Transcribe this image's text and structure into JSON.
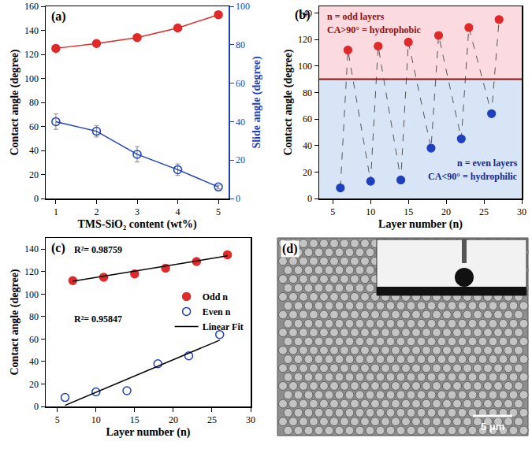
{
  "chart_data": [
    {
      "panel_label": "(a)",
      "type": "line",
      "grid": false,
      "x_label": "TMS-SiO₂ content (wt%)",
      "y_label": "Contact angle (degree)",
      "y2_label": "Slide angle (degree)",
      "xlim": [
        0.75,
        5.25
      ],
      "xticks": [
        1,
        2,
        3,
        4,
        5
      ],
      "ylim": [
        0,
        160
      ],
      "yticks": [
        0,
        20,
        40,
        60,
        80,
        100,
        120,
        140,
        160
      ],
      "y2lim": [
        0,
        100
      ],
      "y2ticks": [
        0,
        20,
        40,
        60,
        80,
        100
      ],
      "series": [
        {
          "color": "#e02a2a",
          "marker": "circle",
          "line_style": "solid",
          "x": [
            1,
            2,
            3,
            4,
            5
          ],
          "values": [
            125,
            129,
            134,
            142,
            153
          ],
          "error": [
            2,
            2,
            2,
            2,
            2
          ]
        },
        {
          "color": "#1f3fbf",
          "marker": "circle-open",
          "line_style": "solid",
          "axis": "y2",
          "x": [
            1,
            2,
            3,
            4,
            5
          ],
          "values": [
            40,
            35,
            23,
            15,
            6
          ],
          "error": [
            4,
            3,
            4,
            3,
            1
          ]
        }
      ]
    },
    {
      "panel_label": "(b)",
      "type": "scatter",
      "grid": false,
      "x_label": "Layer number (n)",
      "y_label": "Contact angle (degree)",
      "xlim": [
        3.2,
        30
      ],
      "xticks": [
        5,
        10,
        15,
        20,
        25,
        30
      ],
      "ylim": [
        0,
        145
      ],
      "yticks": [
        0,
        20,
        40,
        60,
        80,
        100,
        120,
        140
      ],
      "threshold": 90,
      "annotations": [
        "n = odd layers",
        "CA>90° = hydrophobic",
        "n = even layers",
        "CA<90° = hydrophilic"
      ],
      "series": [
        {
          "color": "#555555",
          "line_style": "dashed",
          "marker": "circle",
          "x": [
            6,
            7,
            10,
            11,
            14,
            15,
            18,
            19,
            22,
            23,
            26,
            27
          ],
          "values": [
            8,
            112,
            13,
            115,
            14,
            118,
            38,
            123,
            45,
            129,
            64,
            135
          ],
          "colors": [
            "#1f3fbf",
            "#e02a2a",
            "#1f3fbf",
            "#e02a2a",
            "#1f3fbf",
            "#e02a2a",
            "#1f3fbf",
            "#e02a2a",
            "#1f3fbf",
            "#e02a2a",
            "#1f3fbf",
            "#e02a2a"
          ]
        }
      ]
    },
    {
      "panel_label": "(c)",
      "type": "scatter",
      "grid": false,
      "legend": "right",
      "x_label": "Layer number (n)",
      "y_label": "Contact angle (degree)",
      "xlim": [
        3.5,
        30
      ],
      "xticks": [
        5,
        10,
        15,
        20,
        25,
        30
      ],
      "ylim": [
        0,
        150
      ],
      "yticks": [
        0,
        20,
        40,
        60,
        80,
        100,
        120,
        140
      ],
      "annotations": [
        "R²= 0.98759",
        "R²= 0.95847"
      ],
      "series": [
        {
          "name": "Odd n",
          "type": "scatter",
          "color": "#e02a2a",
          "marker": "circle",
          "x": [
            7,
            11,
            15,
            19,
            23,
            27
          ],
          "values": [
            112,
            115,
            118,
            123,
            129,
            135
          ]
        },
        {
          "name": "Even n",
          "type": "scatter",
          "color": "#1f3fbf",
          "marker": "circle-open",
          "x": [
            6,
            10,
            14,
            18,
            22,
            26
          ],
          "values": [
            8,
            13,
            14,
            38,
            45,
            64
          ]
        },
        {
          "name": "Linear Fit",
          "type": "line",
          "color": "#000000",
          "line_style": "solid",
          "x": [
            7,
            27,
            null,
            6,
            26
          ],
          "values": [
            111.5,
            134,
            null,
            1,
            59
          ]
        }
      ]
    },
    {
      "panel_label": "(d)",
      "type": "image",
      "scale_bar": "5 μm"
    }
  ]
}
